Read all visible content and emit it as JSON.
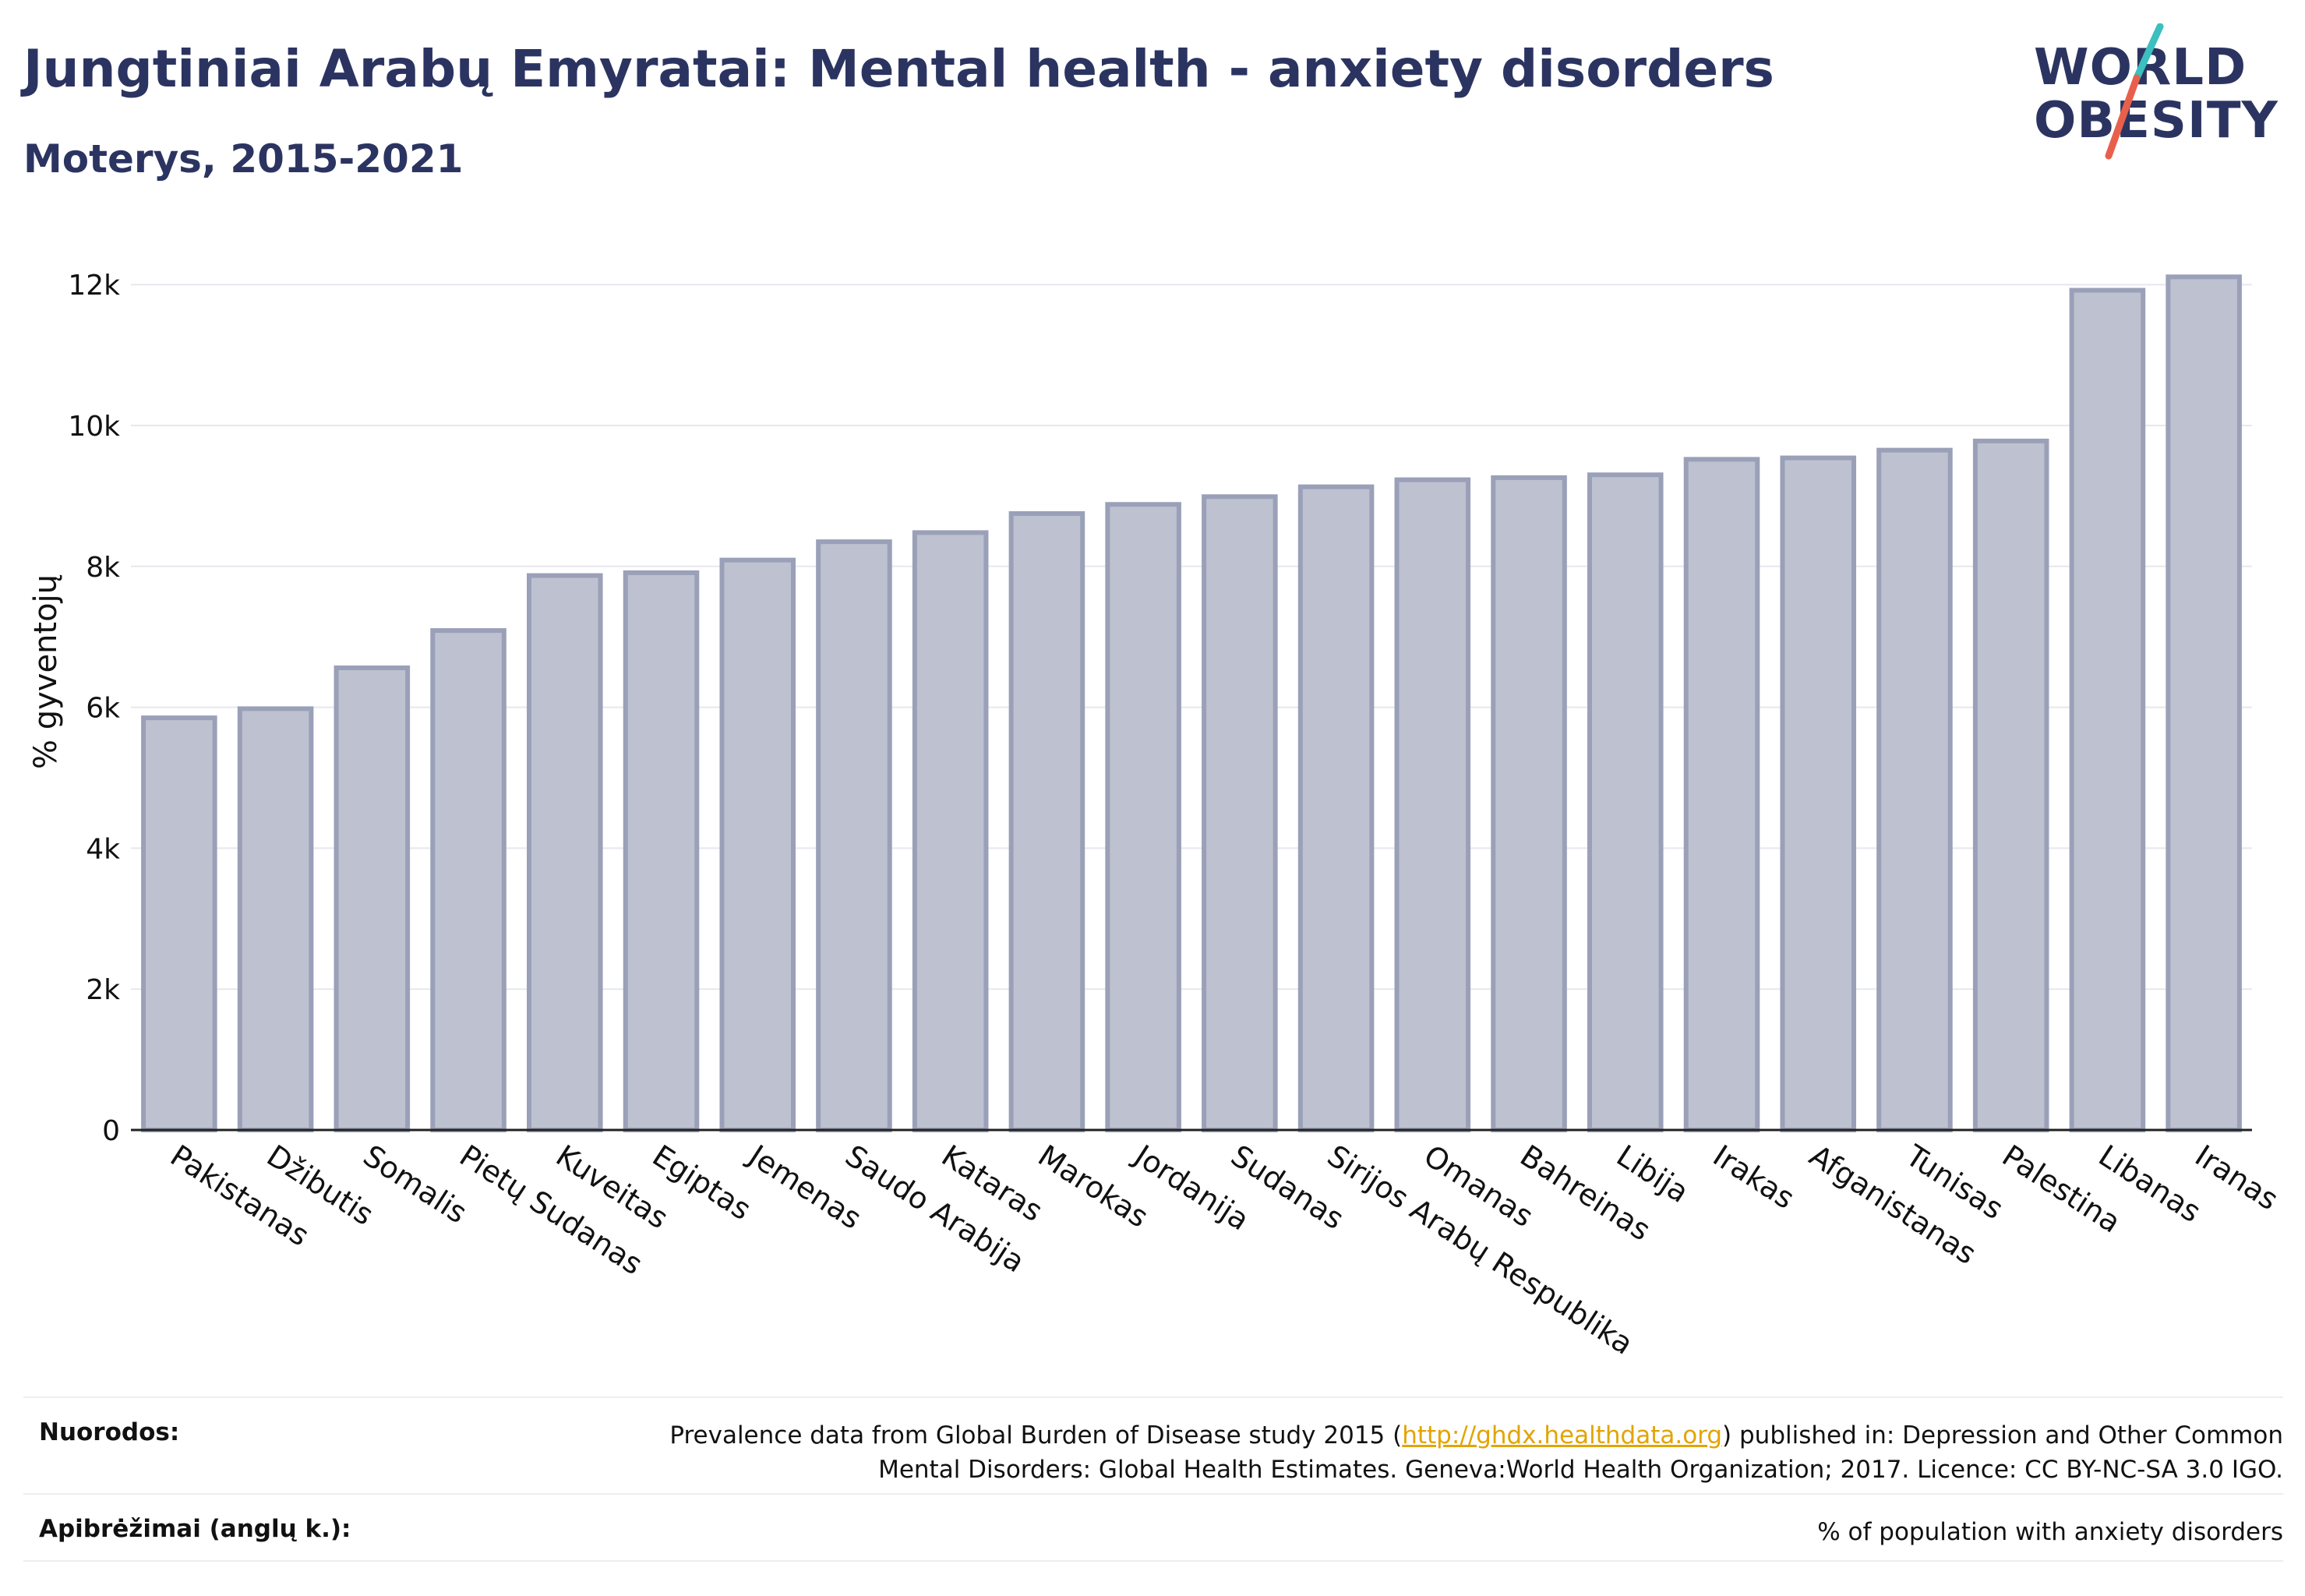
{
  "header": {
    "title": "Jungtiniai Arabų Emyratai: Mental health - anxiety disorders",
    "subtitle": "Moterys, 2015-2021"
  },
  "logo": {
    "line1": "WORLD",
    "line2": "OBESITY",
    "accent_teal": "#3bbfbf",
    "accent_red": "#e8604c"
  },
  "chart_data": {
    "type": "bar",
    "ylabel": "% gyventojų",
    "ylim": [
      0,
      12500
    ],
    "yticks": [
      0,
      2000,
      4000,
      6000,
      8000,
      10000,
      12000
    ],
    "ytick_labels": [
      "0",
      "2k",
      "4k",
      "6k",
      "8k",
      "10k",
      "12k"
    ],
    "grid": true,
    "bar_fill": "#bec1cf",
    "bar_stroke": "#9aa0b8",
    "categories": [
      "Pakistanas",
      "Džibutis",
      "Somalis",
      "Pietų Sudanas",
      "Kuveitas",
      "Egiptas",
      "Jemenas",
      "Saudo Arabija",
      "Kataras",
      "Marokas",
      "Jordanija",
      "Sudanas",
      "Sirijos Arabų Respublika",
      "Omanas",
      "Bahreinas",
      "Libija",
      "Irakas",
      "Afganistanas",
      "Tunisas",
      "Palestina",
      "Libanas",
      "Iranas"
    ],
    "values": [
      5850,
      5980,
      6560,
      7090,
      7870,
      7910,
      8090,
      8350,
      8480,
      8750,
      8880,
      8990,
      9130,
      9230,
      9260,
      9300,
      9520,
      9540,
      9650,
      9780,
      11920,
      12110
    ]
  },
  "footer": {
    "sources_label": "Nuorodos:",
    "sources_text_pre": "Prevalence data from Global Burden of Disease study 2015 (",
    "sources_link": "http://ghdx.healthdata.org",
    "sources_text_post": ") published in: Depression and Other Common",
    "sources_text_line2": "Mental Disorders: Global Health Estimates. Geneva:World Health Organization; 2017. Licence: CC BY-NC-SA 3.0 IGO.",
    "definitions_label": "Apibrėžimai (anglų k.):",
    "definitions_text": "% of population with anxiety disorders"
  }
}
